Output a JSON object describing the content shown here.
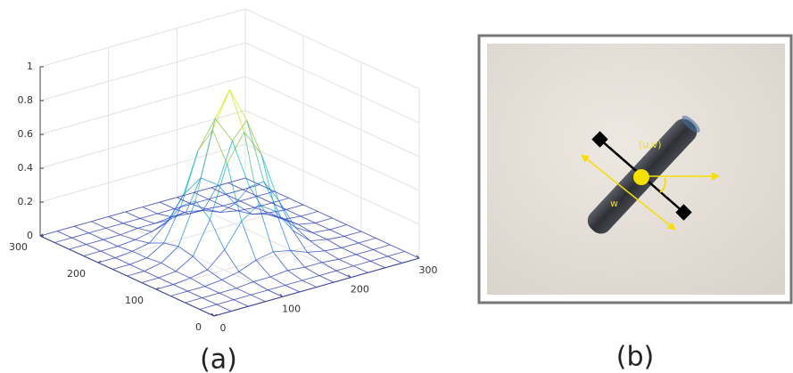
{
  "chart_data": {
    "type": "surface",
    "x": [
      0,
      25,
      50,
      75,
      100,
      125,
      150,
      175,
      200,
      225,
      250,
      275,
      300
    ],
    "y": [
      0,
      25,
      50,
      75,
      100,
      125,
      150,
      175,
      200,
      225,
      250,
      275,
      300
    ],
    "z": [
      [
        0,
        0,
        0,
        0,
        0,
        0,
        0,
        0,
        0,
        0,
        0,
        0,
        0
      ],
      [
        0,
        0,
        0,
        0,
        0,
        0,
        0,
        0,
        0,
        0,
        0,
        0,
        0
      ],
      [
        0,
        0,
        0,
        0,
        0.01,
        0.01,
        0.02,
        0.01,
        0.01,
        0,
        0,
        0,
        0
      ],
      [
        0,
        0,
        0,
        0.01,
        0.03,
        0.07,
        0.09,
        0.07,
        0.03,
        0.01,
        0,
        0,
        0
      ],
      [
        0,
        0,
        0.01,
        0.03,
        0.12,
        0.26,
        0.33,
        0.26,
        0.12,
        0.03,
        0.01,
        0,
        0
      ],
      [
        0,
        0,
        0.01,
        0.07,
        0.26,
        0.56,
        0.72,
        0.56,
        0.26,
        0.07,
        0.01,
        0,
        0
      ],
      [
        0,
        0,
        0.02,
        0.09,
        0.33,
        0.72,
        0.93,
        0.72,
        0.33,
        0.09,
        0.02,
        0,
        0
      ],
      [
        0,
        0,
        0.01,
        0.07,
        0.26,
        0.56,
        0.72,
        0.56,
        0.26,
        0.07,
        0.01,
        0,
        0
      ],
      [
        0,
        0,
        0.01,
        0.03,
        0.12,
        0.26,
        0.33,
        0.26,
        0.12,
        0.03,
        0.01,
        0,
        0
      ],
      [
        0,
        0,
        0,
        0.01,
        0.03,
        0.07,
        0.09,
        0.07,
        0.03,
        0.01,
        0,
        0,
        0
      ],
      [
        0,
        0,
        0,
        0,
        0.01,
        0.01,
        0.02,
        0.01,
        0.01,
        0,
        0,
        0,
        0
      ],
      [
        0,
        0,
        0,
        0,
        0,
        0,
        0,
        0,
        0,
        0,
        0,
        0,
        0
      ],
      [
        0,
        0,
        0,
        0,
        0,
        0,
        0,
        0,
        0,
        0,
        0,
        0,
        0
      ]
    ],
    "xlim": [
      0,
      300
    ],
    "ylim": [
      0,
      300
    ],
    "zlim": [
      0,
      1
    ],
    "xticks": [
      0,
      100,
      200,
      300
    ],
    "yticks": [
      0,
      100,
      200,
      300
    ],
    "zticks": [
      0,
      0.2,
      0.4,
      0.6,
      0.8,
      1
    ],
    "grid": true,
    "colormap": "parula"
  },
  "photo": {
    "point_label": "(u,v)",
    "width_label": "w"
  },
  "panel_labels": [
    "(a)",
    "(b)"
  ]
}
